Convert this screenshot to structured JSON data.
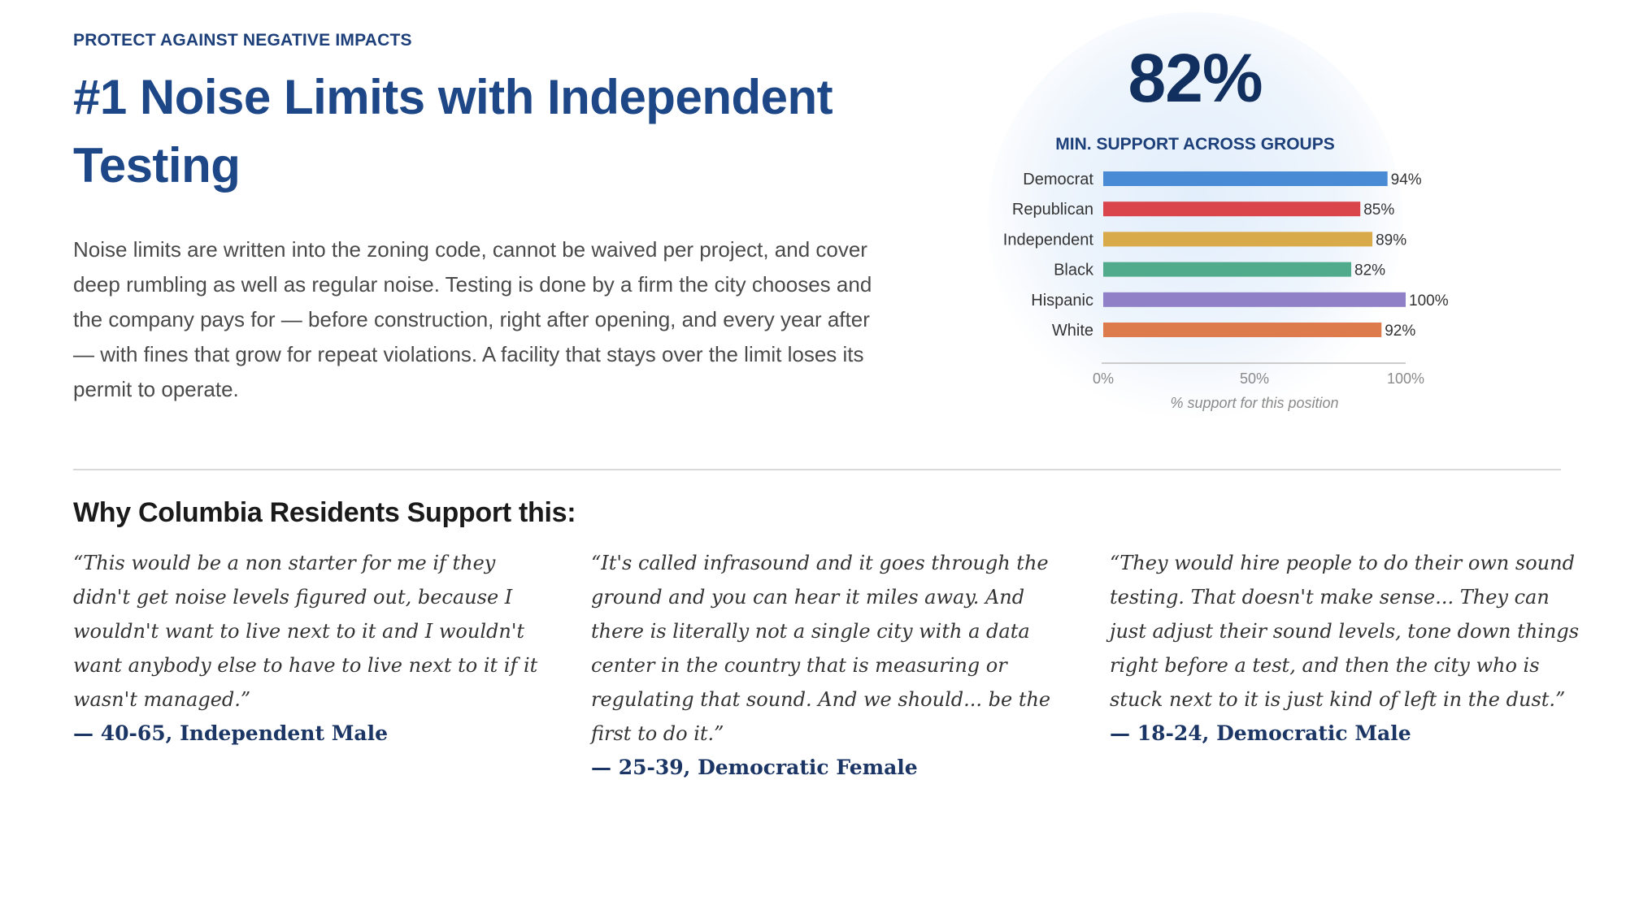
{
  "eyebrow": "PROTECT AGAINST NEGATIVE IMPACTS",
  "headline": "#1 Noise Limits with Independent Testing",
  "body": "Noise limits are written into the zoning code, cannot be waived per project, and cover deep rumbling as well as regular noise. Testing is done by a firm the city chooses and the company pays for — before construction, right after opening, and every year after — with fines that grow for repeat violations. A facility that stays over the limit loses its permit to operate.",
  "stat": {
    "value": "82%",
    "label": "MIN. SUPPORT ACROSS GROUPS"
  },
  "chart_data": {
    "type": "bar",
    "orientation": "horizontal",
    "categories": [
      "Democrat",
      "Republican",
      "Independent",
      "Black",
      "Hispanic",
      "White"
    ],
    "values": [
      94,
      85,
      89,
      82,
      100,
      92
    ],
    "data_labels": [
      "94%",
      "85%",
      "89%",
      "82%",
      "100%",
      "92%"
    ],
    "colors": [
      "#4a8bd6",
      "#d9454b",
      "#d9aa4a",
      "#4fab8c",
      "#8f80c7",
      "#de7b4d"
    ],
    "xlim": [
      0,
      100
    ],
    "x_ticks": [
      "0%",
      "50%",
      "100%"
    ],
    "xlabel": "% support for this position",
    "grid": false
  },
  "section_title": "Why Columbia Residents Support this:",
  "quotes": [
    {
      "text": "“This would be a non starter for me if they didn't get noise levels figured out, because I wouldn't want to live next to it and I wouldn't want anybody else to have to live next to it if it wasn't managed.”",
      "attribution": "— 40-65, Independent Male"
    },
    {
      "text": "“It's called infrasound and it goes through the ground and you can hear it miles away. And there is literally not a single city with a data center in the country that is measuring or regulating that sound. And we should... be the first to do it.”",
      "attribution": "— 25-39, Democratic Female"
    },
    {
      "text": "“They would hire people to do their own sound testing. That doesn't make sense... They can just adjust their sound levels, tone down things right before a test, and then the city who is stuck next to it is just kind of left in the dust.”",
      "attribution": "— 18-24, Democratic Male"
    }
  ]
}
